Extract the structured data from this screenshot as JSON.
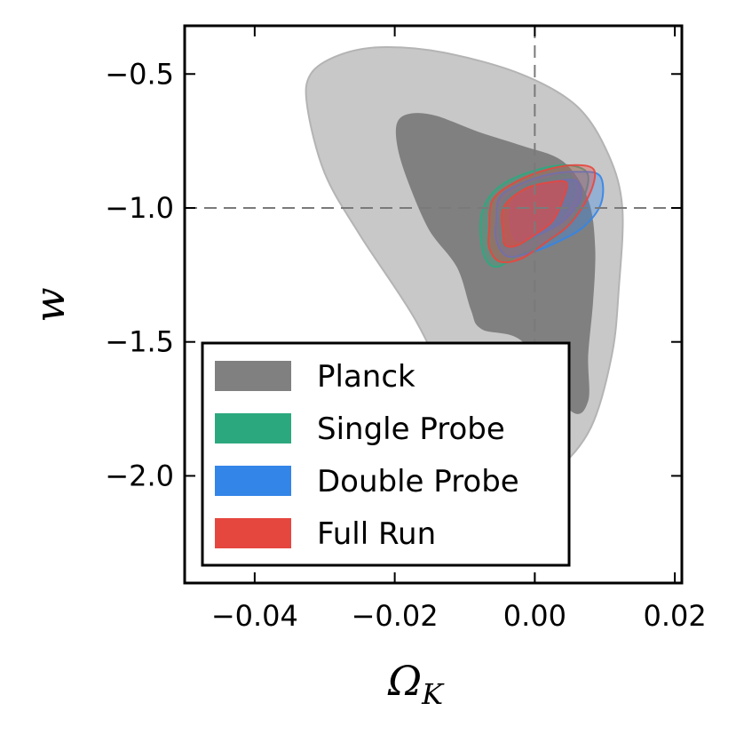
{
  "chart_data": {
    "type": "contour",
    "xlabel": "Ω",
    "xlabel_sub": "K",
    "ylabel": "w",
    "xlim": [
      -0.05,
      0.021
    ],
    "ylim": [
      -2.4,
      -0.32
    ],
    "x_ticks": [
      -0.04,
      -0.02,
      0.0,
      0.02
    ],
    "x_tick_labels": [
      "−0.04",
      "−0.02",
      "0.00",
      "0.02"
    ],
    "y_ticks": [
      -0.5,
      -1.0,
      -1.5,
      -2.0
    ],
    "y_tick_labels": [
      "−0.5",
      "−1.0",
      "−1.5",
      "−2.0"
    ],
    "reference_lines": {
      "x": 0.0,
      "y": -1.0,
      "style": "dashed"
    },
    "legend_position": "lower-left",
    "series": [
      {
        "name": "Planck",
        "color": "#808080",
        "outer_color": "#c8c8c8",
        "contours": [
          {
            "level": "outer",
            "points": [
              [
                -0.0325,
                -0.62
              ],
              [
                -0.032,
                -0.5
              ],
              [
                -0.028,
                -0.43
              ],
              [
                -0.022,
                -0.4
              ],
              [
                -0.013,
                -0.42
              ],
              [
                -0.002,
                -0.5
              ],
              [
                0.006,
                -0.62
              ],
              [
                0.0105,
                -0.8
              ],
              [
                0.0125,
                -1.0
              ],
              [
                0.012,
                -1.3
              ],
              [
                0.011,
                -1.55
              ],
              [
                0.008,
                -1.82
              ],
              [
                0.003,
                -1.98
              ],
              [
                -0.0025,
                -2.04
              ],
              [
                -0.008,
                -1.95
              ],
              [
                -0.012,
                -1.7
              ],
              [
                -0.017,
                -1.42
              ],
              [
                -0.025,
                -1.1
              ],
              [
                -0.03,
                -0.87
              ]
            ]
          },
          {
            "level": "inner",
            "points": [
              [
                -0.0195,
                -0.68
              ],
              [
                -0.0175,
                -0.65
              ],
              [
                -0.014,
                -0.66
              ],
              [
                -0.008,
                -0.72
              ],
              [
                -0.002,
                -0.77
              ],
              [
                0.004,
                -0.83
              ],
              [
                0.0075,
                -0.97
              ],
              [
                0.0085,
                -1.15
              ],
              [
                0.0082,
                -1.35
              ],
              [
                0.0075,
                -1.55
              ],
              [
                0.0075,
                -1.72
              ],
              [
                0.005,
                -1.75
              ],
              [
                -0.0015,
                -1.5
              ],
              [
                -0.0075,
                -1.45
              ],
              [
                -0.009,
                -1.38
              ],
              [
                -0.011,
                -1.22
              ],
              [
                -0.015,
                -1.08
              ],
              [
                -0.018,
                -0.9
              ],
              [
                -0.0195,
                -0.77
              ]
            ]
          }
        ]
      },
      {
        "name": "Single Probe",
        "color": "#2ca87f",
        "contours": [
          {
            "level": "outer",
            "points": [
              [
                -0.0078,
                -1.07
              ],
              [
                -0.007,
                -0.98
              ],
              [
                -0.0045,
                -0.91
              ],
              [
                0.0,
                -0.86
              ],
              [
                0.0045,
                -0.84
              ],
              [
                0.0075,
                -0.87
              ],
              [
                0.007,
                -0.96
              ],
              [
                0.0045,
                -1.07
              ],
              [
                0.0015,
                -1.13
              ],
              [
                -0.0025,
                -1.18
              ],
              [
                -0.0055,
                -1.22
              ],
              [
                -0.0072,
                -1.18
              ]
            ]
          },
          {
            "level": "inner",
            "points": [
              [
                -0.005,
                -1.08
              ],
              [
                -0.0045,
                -0.98
              ],
              [
                -0.0015,
                -0.92
              ],
              [
                0.002,
                -0.89
              ],
              [
                0.005,
                -0.88
              ],
              [
                0.0055,
                -0.96
              ],
              [
                0.003,
                -1.06
              ],
              [
                0.0,
                -1.11
              ],
              [
                -0.0025,
                -1.14
              ],
              [
                -0.0045,
                -1.14
              ]
            ]
          }
        ]
      },
      {
        "name": "Double Probe",
        "color": "#3385e8",
        "contours": [
          {
            "level": "outer",
            "points": [
              [
                -0.0055,
                -1.05
              ],
              [
                -0.005,
                -0.96
              ],
              [
                -0.002,
                -0.91
              ],
              [
                0.002,
                -0.875
              ],
              [
                0.006,
                -0.865
              ],
              [
                0.0093,
                -0.88
              ],
              [
                0.0095,
                -0.98
              ],
              [
                0.007,
                -1.07
              ],
              [
                0.003,
                -1.13
              ],
              [
                -0.001,
                -1.17
              ],
              [
                -0.004,
                -1.18
              ],
              [
                -0.0055,
                -1.12
              ]
            ]
          },
          {
            "level": "inner",
            "points": [
              [
                -0.0035,
                -1.05
              ],
              [
                -0.003,
                -0.97
              ],
              [
                0.0,
                -0.925
              ],
              [
                0.003,
                -0.9
              ],
              [
                0.006,
                -0.9
              ],
              [
                0.0065,
                -0.97
              ],
              [
                0.004,
                -1.05
              ],
              [
                0.0005,
                -1.1
              ],
              [
                -0.0025,
                -1.12
              ]
            ]
          }
        ]
      },
      {
        "name": "Full Run",
        "color": "#e5473f",
        "contours": [
          {
            "level": "outer",
            "points": [
              [
                -0.0065,
                -1.08
              ],
              [
                -0.006,
                -0.97
              ],
              [
                -0.0025,
                -0.9
              ],
              [
                0.002,
                -0.855
              ],
              [
                0.006,
                -0.84
              ],
              [
                0.0085,
                -0.86
              ],
              [
                0.0078,
                -0.95
              ],
              [
                0.005,
                -1.06
              ],
              [
                0.0015,
                -1.13
              ],
              [
                -0.002,
                -1.19
              ],
              [
                -0.005,
                -1.2
              ],
              [
                -0.0065,
                -1.15
              ]
            ]
          },
          {
            "level": "inner",
            "points": [
              [
                -0.0045,
                -1.1
              ],
              [
                -0.0045,
                -1.0
              ],
              [
                -0.0015,
                -0.93
              ],
              [
                0.002,
                -0.905
              ],
              [
                0.0045,
                -0.905
              ],
              [
                0.004,
                -0.97
              ],
              [
                0.0025,
                -1.05
              ],
              [
                0.0,
                -1.1
              ],
              [
                -0.0025,
                -1.14
              ],
              [
                -0.0042,
                -1.14
              ]
            ]
          }
        ]
      }
    ]
  }
}
